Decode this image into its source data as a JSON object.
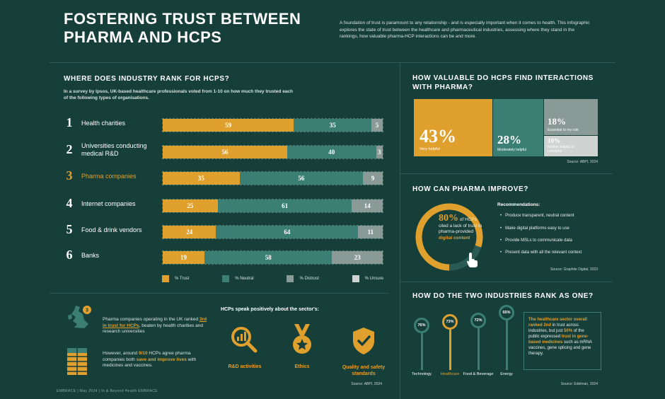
{
  "header": {
    "title_line1": "FOSTERING TRUST BETWEEN",
    "title_line2": "PHARMA AND HCPS",
    "intro": "A foundation of trust is paramount to any relationship - and is especially important when it comes to health. This infographic explores the state of trust between the healthcare and pharmaceutical industries, assessing where they stand in the rankings, how valuable pharma-HCP interactions can be and more."
  },
  "rank_section": {
    "heading": "WHERE DOES INDUSTRY RANK FOR HCPS?",
    "subheading": "In a survey by Ipsos, UK-based healthcare professionals voted from 1-10 on how much they trusted each of the following types of organisations.",
    "rows": [
      {
        "rank": "1",
        "label": "Health charities",
        "trust": 59,
        "neutral": 35,
        "distrust": 5,
        "unsure": 0,
        "trust_label": "59",
        "neutral_label": "35",
        "distrust_label": "5",
        "highlight": false
      },
      {
        "rank": "2",
        "label": "Universities conducting medical R&D",
        "trust": 56,
        "neutral": 40,
        "distrust": 3,
        "unsure": 0,
        "trust_label": "56",
        "neutral_label": "40",
        "distrust_label": "3",
        "highlight": false
      },
      {
        "rank": "3",
        "label": "Pharma companies",
        "trust": 35,
        "neutral": 56,
        "distrust": 9,
        "unsure": 0,
        "trust_label": "35",
        "neutral_label": "56",
        "distrust_label": "9",
        "highlight": true
      },
      {
        "rank": "4",
        "label": "Internet companies",
        "trust": 25,
        "neutral": 61,
        "distrust": 14,
        "unsure": 0,
        "trust_label": "25",
        "neutral_label": "61",
        "distrust_label": "14",
        "highlight": false
      },
      {
        "rank": "5",
        "label": "Food & drink vendors",
        "trust": 24,
        "neutral": 64,
        "distrust": 11,
        "unsure": 0,
        "trust_label": "24",
        "neutral_label": "64",
        "distrust_label": "11",
        "highlight": false
      },
      {
        "rank": "6",
        "label": "Banks",
        "trust": 19,
        "neutral": 58,
        "distrust": 23,
        "unsure": 0,
        "trust_label": "19",
        "neutral_label": "58",
        "distrust_label": "23",
        "highlight": false
      }
    ],
    "legend": [
      {
        "label": "% Trust",
        "color": "#e0a02d"
      },
      {
        "label": "% Neutral",
        "color": "#3b7f74"
      },
      {
        "label": "% Distrust",
        "color": "#8a9a97"
      },
      {
        "label": "% Unsure",
        "color": "#cfd3d1"
      }
    ]
  },
  "uk_section": {
    "text1_pre": "Pharma companies operating in the UK ranked ",
    "text1_gold": "3rd in trust for HCPs",
    "text1_post": ", beaten by health charities and research universities",
    "text2_pre": "However, around ",
    "text2_gold1": "9/10",
    "text2_mid": " HCPs agree pharma companies both ",
    "text2_gold2": "save and improve lives",
    "text2_post": " with medicines and vaccines.",
    "positive_heading": "HCPs speak positively about the sector's:",
    "positives": [
      "R&D activities",
      "Ethics",
      "Quality and safety standards"
    ],
    "source": "Source: ABPI, 2024"
  },
  "footer_left": "EMBRACE  |  May 2024  |  In & Beyond Health EMBRACE",
  "valuable_section": {
    "heading_line1": "HOW VALUABLE DO HCPS FIND INTERACTIONS",
    "heading_line2": "WITH PHARMA?",
    "tiles": [
      {
        "pct": "43%",
        "label": "Very helpful"
      },
      {
        "pct": "28%",
        "label": "Moderately helpful"
      },
      {
        "pct": "18%",
        "label": "Essential to my role"
      },
      {
        "pct": "10%",
        "label": "Neither helpful or unhelpful"
      }
    ],
    "source": "Source: ABPI, 2024"
  },
  "improve_section": {
    "heading": "HOW CAN PHARMA IMPROVE?",
    "gauge_pct": "80%",
    "gauge_text_pre": " of HCPs cited a lack of trust in pharma-provided ",
    "gauge_text_gold": "digital content",
    "gauge_value": 0.8,
    "recommend_heading": "Recommendations:",
    "recommendations": [
      "Produce transparent, neutral content",
      "Make digital platforms easy to use",
      "Provide MSLs to communicate data",
      "Present data with all the relevant context"
    ],
    "source": "Source: Graphite Digital, 2023"
  },
  "rank_one_section": {
    "heading": "HOW DO THE TWO INDUSTRIES RANK AS ONE?",
    "pins": [
      {
        "value": "76%",
        "label": "Technology",
        "highlight": false
      },
      {
        "value": "73%",
        "label": "Healthcare",
        "highlight": true
      },
      {
        "value": "72%",
        "label": "Food & Beverage",
        "highlight": false
      },
      {
        "value": "65%",
        "label": "Energy",
        "highlight": false
      }
    ],
    "text_gold1": "The healthcare sector overall ranked 2nd",
    "text_mid": " in trust across industries, but just ",
    "text_gold2": "50%",
    "text_mid2": " of the public expressed ",
    "text_gold3": "trust in gene-based medicines",
    "text_post": " such as mRNA vaccines, gene splicing and gene therapy.",
    "source": "Source: Edelman, 2024"
  }
}
